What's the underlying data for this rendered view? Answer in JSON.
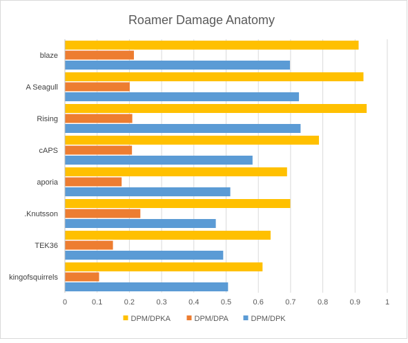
{
  "chart_data": {
    "type": "bar",
    "orientation": "horizontal",
    "title": "Roamer Damage Anatomy",
    "categories": [
      "blaze",
      "A Seagull",
      "Rising",
      "cAPS",
      "aporia",
      ".Knutsson",
      "TEK36",
      "kingofsquirrels"
    ],
    "series": [
      {
        "name": "DPM/DPKA",
        "color": "#FFC000",
        "values": [
          0.91,
          0.925,
          0.935,
          0.787,
          0.688,
          0.698,
          0.637,
          0.612
        ]
      },
      {
        "name": "DPM/DPA",
        "color": "#ED7D31",
        "values": [
          0.213,
          0.2,
          0.208,
          0.207,
          0.175,
          0.233,
          0.148,
          0.105
        ]
      },
      {
        "name": "DPM/DPK",
        "color": "#5B9BD5",
        "values": [
          0.697,
          0.725,
          0.73,
          0.581,
          0.512,
          0.467,
          0.49,
          0.505
        ]
      }
    ],
    "xlim": [
      0,
      1
    ],
    "xticks": [
      "0",
      "0.1",
      "0.2",
      "0.3",
      "0.4",
      "0.5",
      "0.6",
      "0.7",
      "0.8",
      "0.9",
      "1"
    ],
    "grid": true,
    "legend_position": "bottom"
  }
}
